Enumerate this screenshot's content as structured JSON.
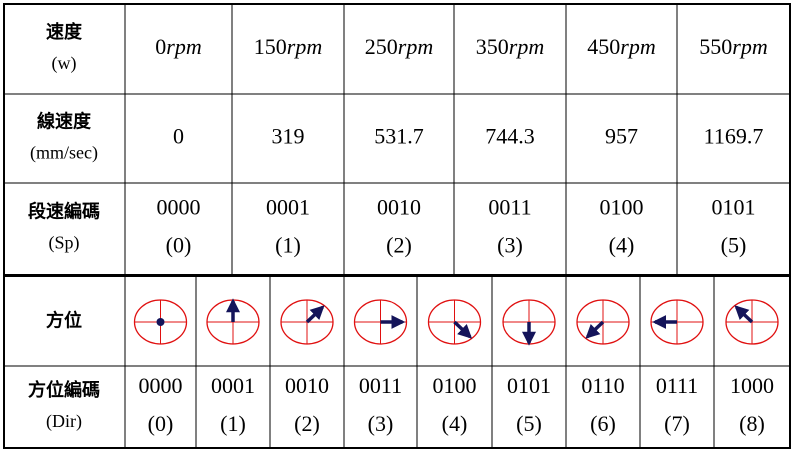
{
  "speed_table": {
    "rows": [
      {
        "label": [
          "速度",
          "(w)"
        ],
        "cells": [
          {
            "number": "0",
            "unit": "rpm"
          },
          {
            "number": "150",
            "unit": "rpm"
          },
          {
            "number": "250",
            "unit": "rpm"
          },
          {
            "number": "350",
            "unit": "rpm"
          },
          {
            "number": "450",
            "unit": "rpm"
          },
          {
            "number": "550",
            "unit": "rpm"
          }
        ]
      },
      {
        "label": [
          "線速度",
          "(mm/sec)"
        ],
        "cells": [
          [
            "0"
          ],
          [
            "319"
          ],
          [
            "531.7"
          ],
          [
            "744.3"
          ],
          [
            "957"
          ],
          [
            "1169.7"
          ]
        ]
      },
      {
        "label": [
          "段速編碼",
          "(Sp)"
        ],
        "cells": [
          [
            "0000",
            "(0)"
          ],
          [
            "0001",
            "(1)"
          ],
          [
            "0010",
            "(2)"
          ],
          [
            "0011",
            "(3)"
          ],
          [
            "0100",
            "(4)"
          ],
          [
            "0101",
            "(5)"
          ]
        ]
      }
    ]
  },
  "direction_table": {
    "rows": [
      {
        "label": [
          "方位"
        ]
      },
      {
        "label": [
          "方位編碼",
          "(Dir)"
        ],
        "cells": [
          [
            "0000",
            "(0)"
          ],
          [
            "0001",
            "(1)"
          ],
          [
            "0010",
            "(2)"
          ],
          [
            "0011",
            "(3)"
          ],
          [
            "0100",
            "(4)"
          ],
          [
            "0101",
            "(5)"
          ],
          [
            "0110",
            "(6)"
          ],
          [
            "0111",
            "(7)"
          ],
          [
            "1000",
            "(8)"
          ]
        ]
      }
    ]
  }
}
